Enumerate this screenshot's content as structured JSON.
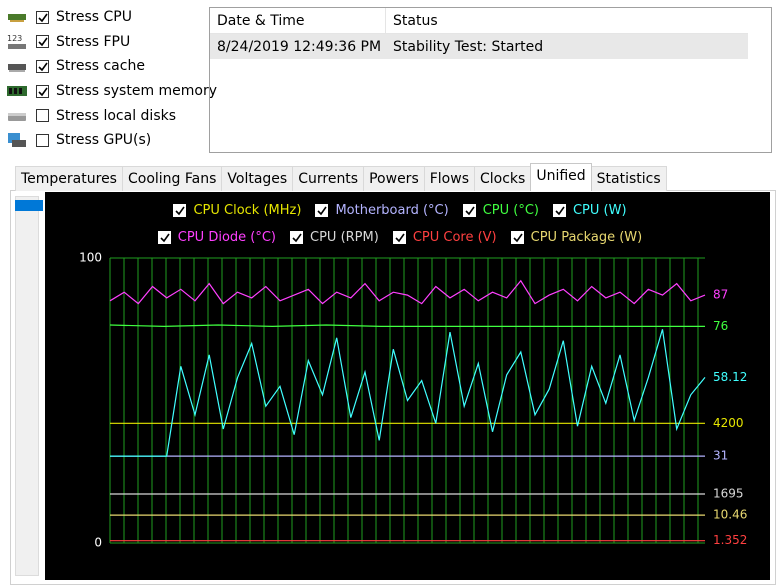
{
  "stress_options": [
    {
      "label": "Stress CPU",
      "checked": true
    },
    {
      "label": "Stress FPU",
      "checked": true
    },
    {
      "label": "Stress cache",
      "checked": true
    },
    {
      "label": "Stress system memory",
      "checked": true
    },
    {
      "label": "Stress local disks",
      "checked": false
    },
    {
      "label": "Stress GPU(s)",
      "checked": false
    }
  ],
  "log_table": {
    "columns": [
      "Date & Time",
      "Status"
    ],
    "rows": [
      [
        "8/24/2019 12:49:36 PM",
        "Stability Test: Started"
      ]
    ]
  },
  "tabs": {
    "items": [
      "Temperatures",
      "Cooling Fans",
      "Voltages",
      "Currents",
      "Powers",
      "Flows",
      "Clocks",
      "Unified",
      "Statistics"
    ],
    "active": 7
  },
  "chart_data": {
    "type": "line",
    "ylim": [
      0,
      100
    ],
    "yticks": [
      0,
      100
    ],
    "grid": true,
    "series": [
      {
        "name": "CPU Clock (MHz)",
        "color": "#e6e600",
        "checked": true,
        "values": [
          42,
          42
        ],
        "reading": "4200"
      },
      {
        "name": "Motherboard (°C)",
        "color": "#b4b4ff",
        "checked": true,
        "values": [
          30.5,
          30.5
        ],
        "reading": "31"
      },
      {
        "name": "CPU (°C)",
        "color": "#40ff40",
        "checked": true,
        "values": [
          76.5,
          76,
          76.5,
          76,
          76.5,
          76,
          76,
          76,
          76,
          76,
          76,
          76
        ],
        "reading": "76"
      },
      {
        "name": "CPU (W)",
        "color": "#40ffff",
        "checked": true,
        "values": [
          30.5,
          30.5,
          30.5,
          30.5,
          30.5,
          62,
          45,
          66,
          40,
          58,
          70,
          48,
          55,
          38,
          64,
          52,
          72,
          44,
          60,
          36,
          68,
          50,
          57,
          42,
          74,
          48,
          63,
          39,
          59,
          67,
          45,
          54,
          71,
          41,
          62,
          49,
          66,
          43,
          58,
          75,
          40,
          52,
          58.12
        ],
        "reading": "58.12"
      },
      {
        "name": "CPU Diode (°C)",
        "color": "#ff40ff",
        "checked": true,
        "values": [
          85,
          88,
          84,
          90,
          86,
          89,
          85,
          91,
          84,
          88,
          86,
          90,
          85,
          87,
          89,
          84,
          88,
          86,
          91,
          85,
          88,
          87,
          84,
          90,
          86,
          89,
          85,
          88,
          86,
          92,
          84,
          87,
          89,
          85,
          90,
          86,
          88,
          84,
          89,
          87,
          91,
          85,
          87
        ],
        "reading": "87"
      },
      {
        "name": "CPU (RPM)",
        "color": "#d8d8d8",
        "checked": true,
        "values": [
          17.2,
          17.2
        ],
        "reading": "1695"
      },
      {
        "name": "CPU Core (V)",
        "color": "#ff4040",
        "checked": true,
        "values": [
          0.8,
          0.8
        ],
        "reading": "1.352"
      },
      {
        "name": "CPU Package (W)",
        "color": "#e8d870",
        "checked": true,
        "values": [
          9.8,
          9.8
        ],
        "reading": "10.46"
      }
    ]
  }
}
